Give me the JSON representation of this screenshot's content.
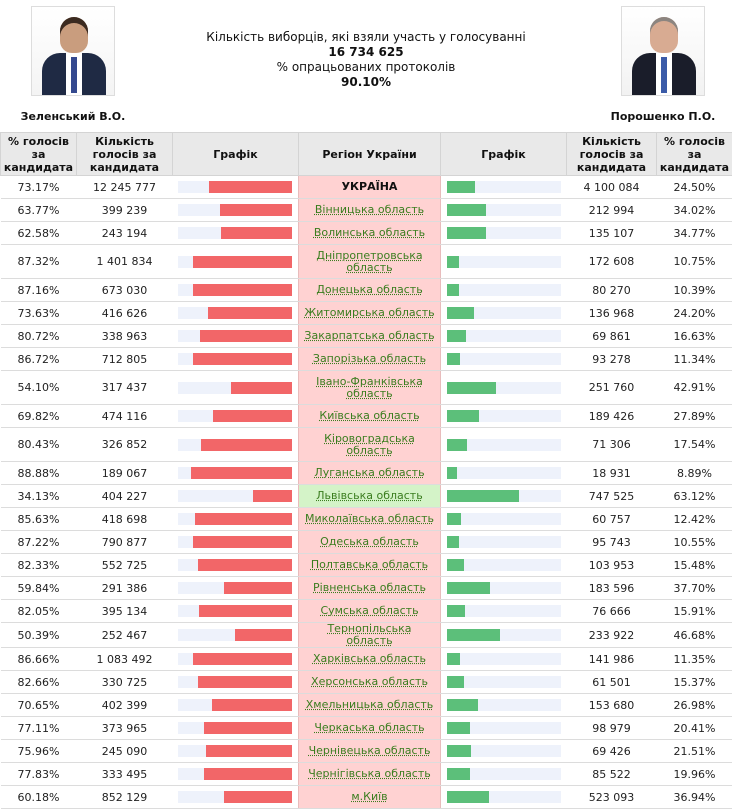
{
  "candidates": {
    "left": {
      "name": "Зеленський В.О.",
      "color": "#f26668"
    },
    "right": {
      "name": "Порошенко П.О.",
      "color": "#5cbf7a"
    }
  },
  "summary": {
    "voters_label": "Кількість виборців, які взяли участь у голосуванні",
    "voters_value": "16 734 625",
    "protocols_label": "% опрацьованих протоколів",
    "protocols_value": "90.10%"
  },
  "columns": {
    "left_pct": "% голосів за кандидата",
    "left_votes": "Кількість голосів за кандидата",
    "left_graph": "Графік",
    "region": "Регіон України",
    "right_graph": "Графік",
    "right_votes": "Кількість голосів за кандидата",
    "right_pct": "% голосів за кандидата"
  },
  "rows": [
    {
      "region": "УКРАЇНА",
      "lp": "73.17%",
      "lv": "12 245 777",
      "rv": "4 100 084",
      "rp": "24.50%",
      "lf": 73.17,
      "rf": 24.5,
      "total": true
    },
    {
      "region": "Вінницька область",
      "lp": "63.77%",
      "lv": "399 239",
      "rv": "212 994",
      "rp": "34.02%",
      "lf": 63.77,
      "rf": 34.02
    },
    {
      "region": "Волинська область",
      "lp": "62.58%",
      "lv": "243 194",
      "rv": "135 107",
      "rp": "34.77%",
      "lf": 62.58,
      "rf": 34.77
    },
    {
      "region": "Дніпропетровська область",
      "lp": "87.32%",
      "lv": "1 401 834",
      "rv": "172 608",
      "rp": "10.75%",
      "lf": 87.32,
      "rf": 10.75,
      "tall": true
    },
    {
      "region": "Донецька область",
      "lp": "87.16%",
      "lv": "673 030",
      "rv": "80 270",
      "rp": "10.39%",
      "lf": 87.16,
      "rf": 10.39
    },
    {
      "region": "Житомирська область",
      "lp": "73.63%",
      "lv": "416 626",
      "rv": "136 968",
      "rp": "24.20%",
      "lf": 73.63,
      "rf": 24.2
    },
    {
      "region": "Закарпатська область",
      "lp": "80.72%",
      "lv": "338 963",
      "rv": "69 861",
      "rp": "16.63%",
      "lf": 80.72,
      "rf": 16.63
    },
    {
      "region": "Запорізька область",
      "lp": "86.72%",
      "lv": "712 805",
      "rv": "93 278",
      "rp": "11.34%",
      "lf": 86.72,
      "rf": 11.34
    },
    {
      "region": "Івано-Франківська область",
      "lp": "54.10%",
      "lv": "317 437",
      "rv": "251 760",
      "rp": "42.91%",
      "lf": 54.1,
      "rf": 42.91,
      "tall": true
    },
    {
      "region": "Київська область",
      "lp": "69.82%",
      "lv": "474 116",
      "rv": "189 426",
      "rp": "27.89%",
      "lf": 69.82,
      "rf": 27.89
    },
    {
      "region": "Кіровоградська область",
      "lp": "80.43%",
      "lv": "326 852",
      "rv": "71 306",
      "rp": "17.54%",
      "lf": 80.43,
      "rf": 17.54,
      "tall": true
    },
    {
      "region": "Луганська область",
      "lp": "88.88%",
      "lv": "189 067",
      "rv": "18 931",
      "rp": "8.89%",
      "lf": 88.88,
      "rf": 8.89
    },
    {
      "region": "Львівська область",
      "lp": "34.13%",
      "lv": "404 227",
      "rv": "747 525",
      "rp": "63.12%",
      "lf": 34.13,
      "rf": 63.12,
      "win": true
    },
    {
      "region": "Миколаївська область",
      "lp": "85.63%",
      "lv": "418 698",
      "rv": "60 757",
      "rp": "12.42%",
      "lf": 85.63,
      "rf": 12.42
    },
    {
      "region": "Одеська область",
      "lp": "87.22%",
      "lv": "790 877",
      "rv": "95 743",
      "rp": "10.55%",
      "lf": 87.22,
      "rf": 10.55
    },
    {
      "region": "Полтавська область",
      "lp": "82.33%",
      "lv": "552 725",
      "rv": "103 953",
      "rp": "15.48%",
      "lf": 82.33,
      "rf": 15.48
    },
    {
      "region": "Рівненська область",
      "lp": "59.84%",
      "lv": "291 386",
      "rv": "183 596",
      "rp": "37.70%",
      "lf": 59.84,
      "rf": 37.7
    },
    {
      "region": "Сумська область",
      "lp": "82.05%",
      "lv": "395 134",
      "rv": "76 666",
      "rp": "15.91%",
      "lf": 82.05,
      "rf": 15.91
    },
    {
      "region": "Тернопільська область",
      "lp": "50.39%",
      "lv": "252 467",
      "rv": "233 922",
      "rp": "46.68%",
      "lf": 50.39,
      "rf": 46.68
    },
    {
      "region": "Харківська область",
      "lp": "86.66%",
      "lv": "1 083 492",
      "rv": "141 986",
      "rp": "11.35%",
      "lf": 86.66,
      "rf": 11.35
    },
    {
      "region": "Херсонська область",
      "lp": "82.66%",
      "lv": "330 725",
      "rv": "61 501",
      "rp": "15.37%",
      "lf": 82.66,
      "rf": 15.37
    },
    {
      "region": "Хмельницька область",
      "lp": "70.65%",
      "lv": "402 399",
      "rv": "153 680",
      "rp": "26.98%",
      "lf": 70.65,
      "rf": 26.98
    },
    {
      "region": "Черкаська область",
      "lp": "77.11%",
      "lv": "373 965",
      "rv": "98 979",
      "rp": "20.41%",
      "lf": 77.11,
      "rf": 20.41
    },
    {
      "region": "Чернівецька область",
      "lp": "75.96%",
      "lv": "245 090",
      "rv": "69 426",
      "rp": "21.51%",
      "lf": 75.96,
      "rf": 21.51
    },
    {
      "region": "Чернігівська область",
      "lp": "77.83%",
      "lv": "333 495",
      "rv": "85 522",
      "rp": "19.96%",
      "lf": 77.83,
      "rf": 19.96
    },
    {
      "region": "м.Київ",
      "lp": "60.18%",
      "lv": "852 129",
      "rv": "523 093",
      "rp": "36.94%",
      "lf": 60.18,
      "rf": 36.94
    }
  ]
}
